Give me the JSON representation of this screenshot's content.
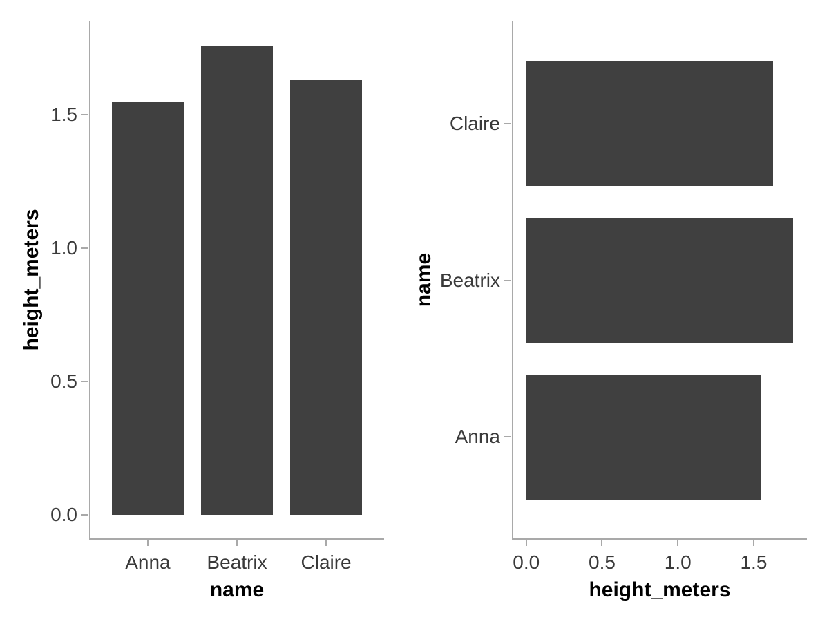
{
  "style": {
    "background": "#ffffff",
    "bar_color": "#404040",
    "axis_line_color": "#a9a9a9",
    "tick_label_color": "#3a3a3a",
    "axis_title_color": "#000000"
  },
  "chart_data": [
    {
      "type": "bar",
      "orientation": "vertical",
      "categories": [
        "Anna",
        "Beatrix",
        "Claire"
      ],
      "values": [
        1.55,
        1.76,
        1.63
      ],
      "xlabel": "name",
      "ylabel": "height_meters",
      "value_ticks": [
        0.0,
        0.5,
        1.0,
        1.5
      ],
      "value_tick_labels": [
        "0.0",
        "0.5",
        "1.0",
        "1.5"
      ],
      "ylim": [
        0,
        1.85
      ],
      "grid": false,
      "legend": false
    },
    {
      "type": "bar",
      "orientation": "horizontal",
      "categories": [
        "Claire",
        "Beatrix",
        "Anna"
      ],
      "values": [
        1.63,
        1.76,
        1.55
      ],
      "xlabel": "height_meters",
      "ylabel": "name",
      "value_ticks": [
        0.0,
        0.5,
        1.0,
        1.5
      ],
      "value_tick_labels": [
        "0.0",
        "0.5",
        "1.0",
        "1.5"
      ],
      "xlim": [
        0,
        1.85
      ],
      "grid": false,
      "legend": false
    }
  ]
}
